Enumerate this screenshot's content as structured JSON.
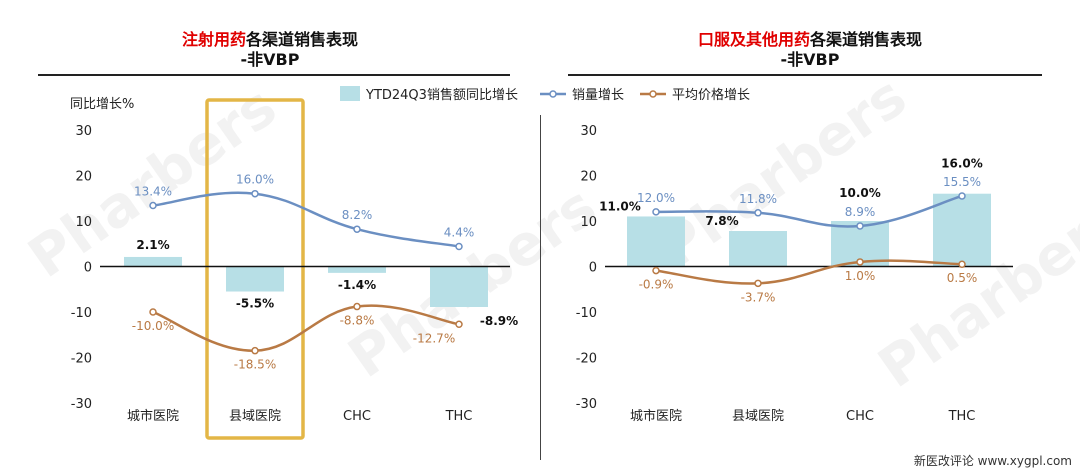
{
  "watermark": "Pharbers",
  "footer": "新医改评论 www.xygpl.com",
  "legend": {
    "bar": "YTD24Q3销售额同比增长",
    "volume": "销量增长",
    "price": "平均价格增长"
  },
  "colors": {
    "bar": "#b7dfe6",
    "volume": "#6b8fc2",
    "price": "#b97a45",
    "highlight": "#e3b646"
  },
  "chart_data": [
    {
      "type": "bar",
      "title_highlight": "注射用药",
      "title_rest": "各渠道销售表现",
      "subtitle": "-非VBP",
      "ylabel": "同比增长%",
      "ylim": [
        -30,
        30
      ],
      "yticks": [
        30,
        20,
        10,
        0,
        -10,
        -20,
        -30
      ],
      "categories": [
        "城市医院",
        "县域医院",
        "CHC",
        "THC"
      ],
      "series": [
        {
          "name": "YTD24Q3销售额同比增长",
          "kind": "bar",
          "values": [
            2.1,
            -5.5,
            -1.4,
            -8.9
          ],
          "labels": [
            "2.1%",
            "-5.5%",
            "-1.4%",
            "-8.9%"
          ]
        },
        {
          "name": "销量增长",
          "kind": "line",
          "values": [
            13.4,
            16.0,
            8.2,
            4.4
          ],
          "labels": [
            "13.4%",
            "16.0%",
            "8.2%",
            "4.4%"
          ]
        },
        {
          "name": "平均价格增长",
          "kind": "line",
          "values": [
            -10.0,
            -18.5,
            -8.8,
            -12.7
          ],
          "labels": [
            "-10.0%",
            "-18.5%",
            "-8.8%",
            "-12.7%"
          ]
        }
      ],
      "highlight_category": "县域医院"
    },
    {
      "type": "bar",
      "title_highlight": "口服及其他用药",
      "title_rest": "各渠道销售表现",
      "subtitle": "-非VBP",
      "ylim": [
        -30,
        30
      ],
      "yticks": [
        30,
        20,
        10,
        0,
        -10,
        -20,
        -30
      ],
      "categories": [
        "城市医院",
        "县域医院",
        "CHC",
        "THC"
      ],
      "series": [
        {
          "name": "YTD24Q3销售额同比增长",
          "kind": "bar",
          "values": [
            11.0,
            7.8,
            10.0,
            16.0
          ],
          "labels": [
            "11.0%",
            "7.8%",
            "10.0%",
            "16.0%"
          ]
        },
        {
          "name": "销量增长",
          "kind": "line",
          "values": [
            12.0,
            11.8,
            8.9,
            15.5
          ],
          "labels": [
            "12.0%",
            "11.8%",
            "8.9%",
            "15.5%"
          ]
        },
        {
          "name": "平均价格增长",
          "kind": "line",
          "values": [
            -0.9,
            -3.7,
            1.0,
            0.5
          ],
          "labels": [
            "-0.9%",
            "-3.7%",
            "1.0%",
            "0.5%"
          ]
        }
      ]
    }
  ]
}
